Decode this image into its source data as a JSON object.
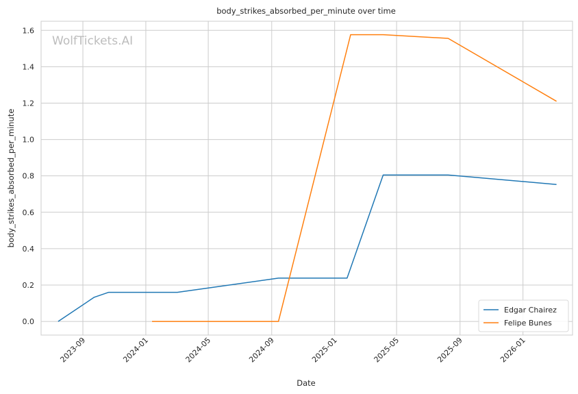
{
  "chart_data": {
    "type": "line",
    "title": "body_strikes_absorbed_per_minute over time",
    "xlabel": "Date",
    "ylabel": "body_strikes_absorbed_per_minute",
    "watermark": "WolfTickets.AI",
    "x_ticks": [
      "2023-09",
      "2024-01",
      "2024-05",
      "2024-09",
      "2025-01",
      "2025-05",
      "2025-09",
      "2026-01"
    ],
    "y_ticks": [
      "0.0",
      "0.2",
      "0.4",
      "0.6",
      "0.8",
      "1.0",
      "1.2",
      "1.4",
      "1.6"
    ],
    "ylim": [
      -0.075,
      1.65
    ],
    "xlim": [
      "2023-06-12",
      "2026-04-07"
    ],
    "grid": true,
    "legend_position": "lower-right",
    "series": [
      {
        "name": "Edgar Chairez",
        "color": "#1f77b4",
        "points": [
          {
            "date": "2023-07-15",
            "value": 0.0
          },
          {
            "date": "2023-09-23",
            "value": 0.133
          },
          {
            "date": "2023-10-21",
            "value": 0.16
          },
          {
            "date": "2024-03-02",
            "value": 0.16
          },
          {
            "date": "2024-09-14",
            "value": 0.238
          },
          {
            "date": "2025-01-25",
            "value": 0.238
          },
          {
            "date": "2025-04-05",
            "value": 0.805
          },
          {
            "date": "2025-08-09",
            "value": 0.805
          },
          {
            "date": "2026-03-07",
            "value": 0.753
          }
        ]
      },
      {
        "name": "Felipe Bunes",
        "color": "#ff7f0e",
        "points": [
          {
            "date": "2024-01-13",
            "value": 0.0
          },
          {
            "date": "2024-09-14",
            "value": 0.0
          },
          {
            "date": "2025-02-01",
            "value": 1.576
          },
          {
            "date": "2025-04-05",
            "value": 1.576
          },
          {
            "date": "2025-08-09",
            "value": 1.556
          },
          {
            "date": "2026-03-07",
            "value": 1.21
          }
        ]
      }
    ]
  }
}
